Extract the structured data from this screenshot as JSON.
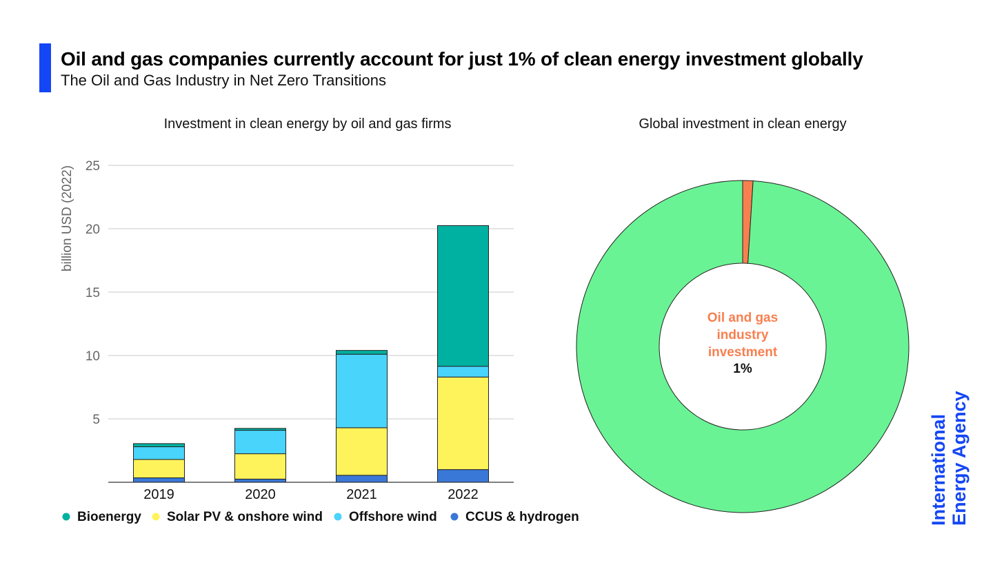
{
  "header": {
    "title": "Oil and gas companies currently account for just 1% of clean energy investment globally",
    "subtitle": "The Oil and Gas Industry in Net Zero Transitions",
    "accent_color": "#1446f5"
  },
  "logo": {
    "line1": "International",
    "line2": "Energy Agency",
    "color": "#1446f5"
  },
  "chart_data": [
    {
      "type": "bar",
      "stacked": true,
      "title": "Investment in clean energy by oil and gas firms",
      "xlabel": "",
      "ylabel": "billion USD (2022)",
      "ylim": [
        0,
        25
      ],
      "yticks": [
        5,
        10,
        15,
        20,
        25
      ],
      "grid": true,
      "legend_position": "bottom",
      "categories": [
        "2019",
        "2020",
        "2021",
        "2022"
      ],
      "series": [
        {
          "name": "CCUS & hydrogen",
          "color": "#3a78d8",
          "values": [
            0.35,
            0.25,
            0.55,
            1.0
          ]
        },
        {
          "name": "Solar PV & onshore wind",
          "color": "#fff35c",
          "values": [
            1.45,
            2.0,
            3.75,
            7.3
          ]
        },
        {
          "name": "Offshore wind",
          "color": "#49d4fb",
          "values": [
            1.0,
            1.85,
            5.8,
            0.85
          ]
        },
        {
          "name": "Bioenergy",
          "color": "#00b0a0",
          "values": [
            0.25,
            0.15,
            0.3,
            11.1
          ]
        }
      ],
      "legend_order": [
        "Bioenergy",
        "Solar PV & onshore wind",
        "Offshore wind",
        "CCUS & hydrogen"
      ]
    },
    {
      "type": "pie",
      "donut": true,
      "title": "Global investment in clean energy",
      "slices": [
        {
          "label": "Oil and gas industry investment",
          "value": 1,
          "color": "#f87f50"
        },
        {
          "label": "",
          "value": 99,
          "color": "#6af394"
        }
      ],
      "center_label": [
        "Oil and gas",
        "industry",
        "investment"
      ],
      "center_value": "1%",
      "center_label_color": "#f87f50"
    }
  ]
}
